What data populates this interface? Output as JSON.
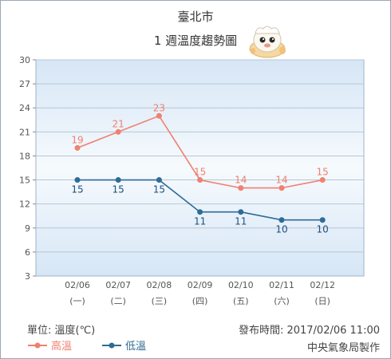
{
  "header": {
    "city": "臺北市",
    "subtitle": "1 週溫度趨勢圖"
  },
  "footer": {
    "unit": "單位: 溫度(℃)",
    "published": "發布時間: 2017/02/06 11:00",
    "agency": "中央氣象局製作"
  },
  "legend": {
    "high": "高溫",
    "low": "低溫"
  },
  "colors": {
    "high": "#f08070",
    "low": "#2f6b96",
    "plot_bg_top": "#d6e6f6",
    "plot_bg_mid": "#f6fafd",
    "axis_text": "#555555",
    "value_low_text": "#1f4f7a"
  },
  "chart_data": {
    "type": "line",
    "categories": [
      "02/06",
      "02/07",
      "02/08",
      "02/09",
      "02/10",
      "02/11",
      "02/12"
    ],
    "weekdays": [
      "(一)",
      "(二)",
      "(三)",
      "(四)",
      "(五)",
      "(六)",
      "(日)"
    ],
    "series": [
      {
        "name": "高溫",
        "values": [
          19,
          21,
          23,
          15,
          14,
          14,
          15
        ]
      },
      {
        "name": "低溫",
        "values": [
          15,
          15,
          15,
          11,
          11,
          10,
          10
        ]
      }
    ],
    "ylabel": "溫度(℃)",
    "ylim": [
      3,
      30
    ],
    "yticks": [
      3,
      6,
      9,
      12,
      15,
      18,
      21,
      24,
      27,
      30
    ],
    "grid": true
  }
}
